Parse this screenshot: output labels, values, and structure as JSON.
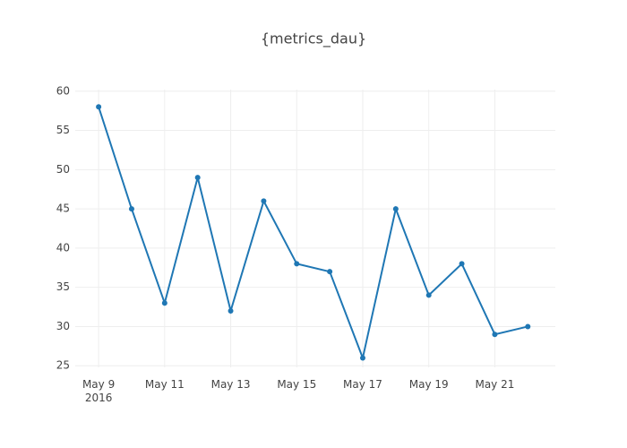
{
  "chart_data": {
    "type": "line",
    "title": "{metrics_dau}",
    "x": [
      "2016-05-09",
      "2016-05-10",
      "2016-05-11",
      "2016-05-12",
      "2016-05-13",
      "2016-05-14",
      "2016-05-15",
      "2016-05-16",
      "2016-05-17",
      "2016-05-18",
      "2016-05-19",
      "2016-05-20",
      "2016-05-21",
      "2016-05-22"
    ],
    "series": [
      {
        "name": "metrics_dau",
        "color": "#1f77b4",
        "values": [
          58,
          45,
          33,
          49,
          32,
          46,
          38,
          37,
          26,
          45,
          34,
          38,
          29,
          30
        ]
      }
    ],
    "xlim": [
      "2016-05-08T07:00",
      "2016-05-22T20:00"
    ],
    "xticks": [
      {
        "value": "2016-05-09",
        "label": "May 9\n2016"
      },
      {
        "value": "2016-05-11",
        "label": "May 11"
      },
      {
        "value": "2016-05-13",
        "label": "May 13"
      },
      {
        "value": "2016-05-15",
        "label": "May 15"
      },
      {
        "value": "2016-05-17",
        "label": "May 17"
      },
      {
        "value": "2016-05-19",
        "label": "May 19"
      },
      {
        "value": "2016-05-21",
        "label": "May 21"
      }
    ],
    "ylim": [
      24.8,
      60.2
    ],
    "yticks": [
      25,
      30,
      35,
      40,
      45,
      50,
      55,
      60
    ],
    "grid": true
  }
}
